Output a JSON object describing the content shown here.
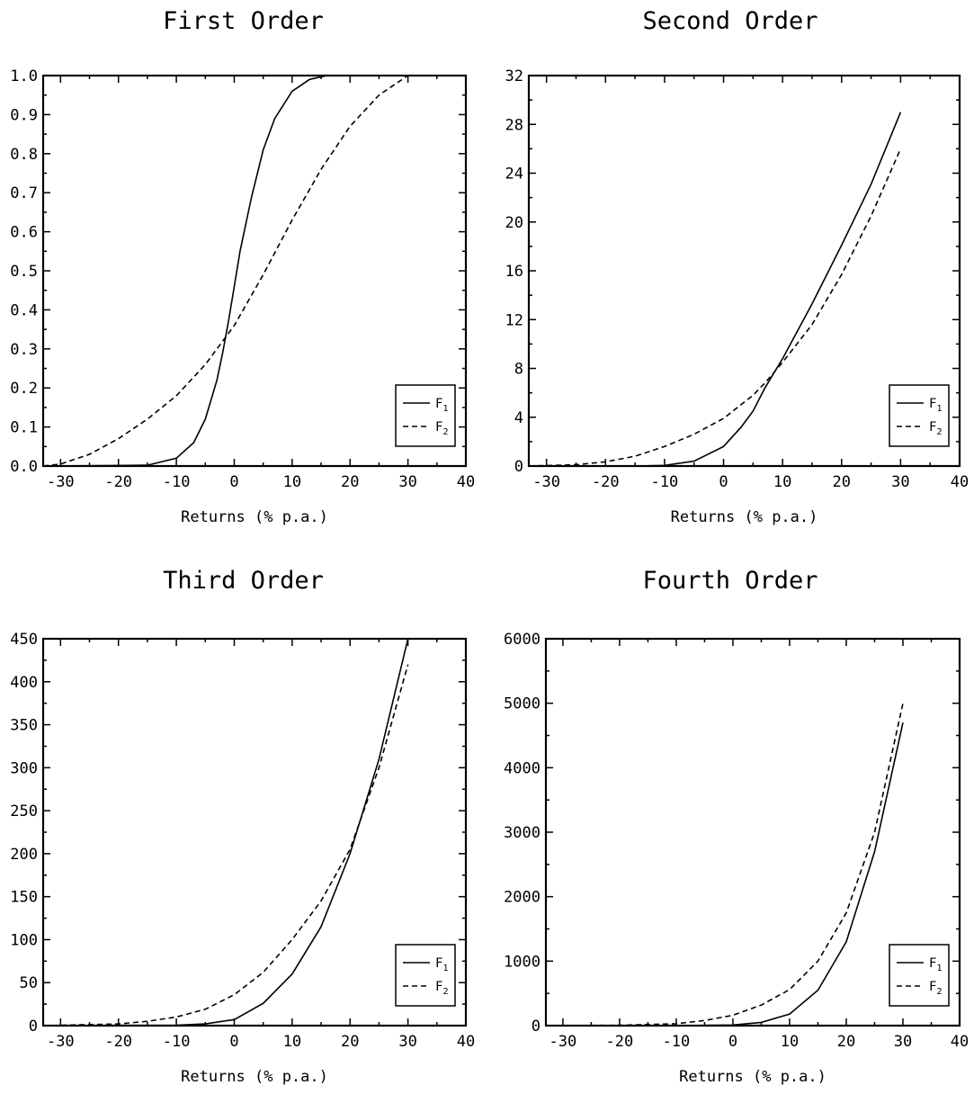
{
  "chart_data": [
    {
      "type": "line",
      "title": "First Order",
      "xlabel": "Returns (% p.a.)",
      "ylabel": "",
      "xlim": [
        -33,
        40
      ],
      "ylim": [
        0,
        1.0
      ],
      "xticks": [
        -30,
        -20,
        -10,
        0,
        10,
        20,
        30,
        40
      ],
      "yticks": [
        0.0,
        0.1,
        0.2,
        0.3,
        0.4,
        0.5,
        0.6,
        0.7,
        0.8,
        0.9,
        1.0
      ],
      "ytick_labels": [
        "0.0",
        "0.1",
        "0.2",
        "0.3",
        "0.4",
        "0.5",
        "0.6",
        "0.7",
        "0.8",
        "0.9",
        "1.0"
      ],
      "legend_position": "bottom-right",
      "grid": false,
      "series": [
        {
          "name": "F1",
          "style": "solid",
          "points": [
            [
              -33,
              0.0
            ],
            [
              -15,
              0.002
            ],
            [
              -10,
              0.02
            ],
            [
              -7,
              0.06
            ],
            [
              -5,
              0.12
            ],
            [
              -3,
              0.22
            ],
            [
              -2,
              0.29
            ],
            [
              -1,
              0.37
            ],
            [
              0,
              0.46
            ],
            [
              1,
              0.55
            ],
            [
              3,
              0.69
            ],
            [
              5,
              0.81
            ],
            [
              7,
              0.89
            ],
            [
              10,
              0.96
            ],
            [
              13,
              0.99
            ],
            [
              16,
              1.0
            ],
            [
              30,
              1.0
            ]
          ]
        },
        {
          "name": "F2",
          "style": "dashed",
          "points": [
            [
              -33,
              0.0
            ],
            [
              -30,
              0.005
            ],
            [
              -25,
              0.03
            ],
            [
              -20,
              0.07
            ],
            [
              -15,
              0.12
            ],
            [
              -10,
              0.18
            ],
            [
              -5,
              0.26
            ],
            [
              0,
              0.36
            ],
            [
              5,
              0.49
            ],
            [
              10,
              0.63
            ],
            [
              15,
              0.76
            ],
            [
              20,
              0.87
            ],
            [
              25,
              0.95
            ],
            [
              30,
              1.0
            ]
          ]
        }
      ]
    },
    {
      "type": "line",
      "title": "Second Order",
      "xlabel": "Returns (% p.a.)",
      "ylabel": "",
      "xlim": [
        -33,
        40
      ],
      "ylim": [
        0,
        32
      ],
      "xticks": [
        -30,
        -20,
        -10,
        0,
        10,
        20,
        30,
        40
      ],
      "yticks": [
        0,
        4,
        8,
        12,
        16,
        20,
        24,
        28,
        32
      ],
      "ytick_labels": [
        "0",
        "4",
        "8",
        "12",
        "16",
        "20",
        "24",
        "28",
        "32"
      ],
      "legend_position": "bottom-right",
      "grid": false,
      "series": [
        {
          "name": "F1",
          "style": "solid",
          "points": [
            [
              -33,
              0.0
            ],
            [
              -15,
              0.0
            ],
            [
              -10,
              0.05
            ],
            [
              -5,
              0.4
            ],
            [
              0,
              1.6
            ],
            [
              3,
              3.2
            ],
            [
              5,
              4.5
            ],
            [
              7,
              6.4
            ],
            [
              10,
              8.8
            ],
            [
              15,
              13.3
            ],
            [
              20,
              18.1
            ],
            [
              25,
              23.1
            ],
            [
              30,
              29.0
            ]
          ]
        },
        {
          "name": "F2",
          "style": "dashed",
          "points": [
            [
              -33,
              0.0
            ],
            [
              -25,
              0.1
            ],
            [
              -20,
              0.35
            ],
            [
              -15,
              0.8
            ],
            [
              -10,
              1.6
            ],
            [
              -5,
              2.6
            ],
            [
              0,
              3.9
            ],
            [
              5,
              5.8
            ],
            [
              7,
              6.8
            ],
            [
              10,
              8.5
            ],
            [
              15,
              11.6
            ],
            [
              20,
              15.7
            ],
            [
              25,
              20.5
            ],
            [
              30,
              26.0
            ]
          ]
        }
      ]
    },
    {
      "type": "line",
      "title": "Third Order",
      "xlabel": "Returns (% p.a.)",
      "ylabel": "",
      "xlim": [
        -33,
        40
      ],
      "ylim": [
        0,
        450
      ],
      "xticks": [
        -30,
        -20,
        -10,
        0,
        10,
        20,
        30,
        40
      ],
      "yticks": [
        0,
        50,
        100,
        150,
        200,
        250,
        300,
        350,
        400,
        450
      ],
      "ytick_labels": [
        "0",
        "50",
        "100",
        "150",
        "200",
        "250",
        "300",
        "350",
        "400",
        "450"
      ],
      "legend_position": "bottom-right",
      "grid": false,
      "series": [
        {
          "name": "F1",
          "style": "solid",
          "points": [
            [
              -33,
              0
            ],
            [
              -10,
              0.5
            ],
            [
              -5,
              2
            ],
            [
              0,
              7
            ],
            [
              5,
              26
            ],
            [
              10,
              60
            ],
            [
              15,
              115
            ],
            [
              20,
              200
            ],
            [
              25,
              310
            ],
            [
              30,
              450
            ]
          ]
        },
        {
          "name": "F2",
          "style": "dashed",
          "points": [
            [
              -33,
              0
            ],
            [
              -20,
              2
            ],
            [
              -15,
              5
            ],
            [
              -10,
              10
            ],
            [
              -5,
              19
            ],
            [
              0,
              36
            ],
            [
              5,
              62
            ],
            [
              10,
              100
            ],
            [
              15,
              145
            ],
            [
              20,
              205
            ],
            [
              25,
              300
            ],
            [
              30,
              420
            ]
          ]
        }
      ]
    },
    {
      "type": "line",
      "title": "Fourth Order",
      "xlabel": "Returns (% p.a.)",
      "ylabel": "",
      "xlim": [
        -33,
        40
      ],
      "ylim": [
        0,
        6000
      ],
      "xticks": [
        -30,
        -20,
        -10,
        0,
        10,
        20,
        30,
        40
      ],
      "yticks": [
        0,
        1000,
        2000,
        3000,
        4000,
        5000,
        6000
      ],
      "ytick_labels": [
        "0",
        "1000",
        "2000",
        "3000",
        "4000",
        "5000",
        "6000"
      ],
      "legend_position": "bottom-right",
      "grid": false,
      "series": [
        {
          "name": "F1",
          "style": "solid",
          "points": [
            [
              -33,
              0
            ],
            [
              -10,
              0
            ],
            [
              0,
              10
            ],
            [
              5,
              50
            ],
            [
              10,
              180
            ],
            [
              15,
              550
            ],
            [
              20,
              1300
            ],
            [
              25,
              2700
            ],
            [
              30,
              4700
            ]
          ]
        },
        {
          "name": "F2",
          "style": "dashed",
          "points": [
            [
              -33,
              0
            ],
            [
              -20,
              5
            ],
            [
              -10,
              30
            ],
            [
              -5,
              80
            ],
            [
              0,
              160
            ],
            [
              5,
              320
            ],
            [
              10,
              560
            ],
            [
              15,
              1000
            ],
            [
              20,
              1750
            ],
            [
              25,
              3000
            ],
            [
              30,
              5000
            ]
          ]
        }
      ]
    }
  ]
}
